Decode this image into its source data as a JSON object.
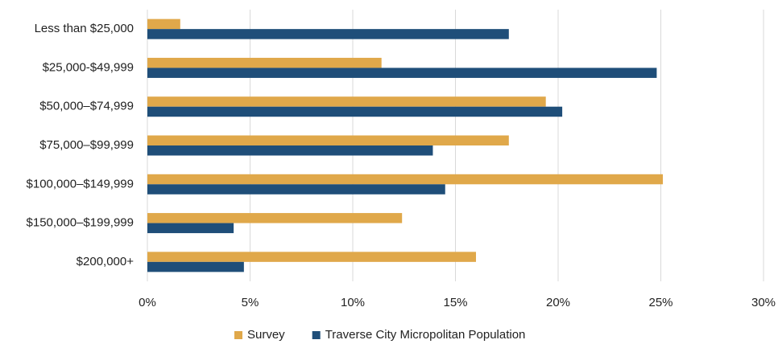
{
  "chart_data": {
    "type": "bar",
    "orientation": "horizontal",
    "categories": [
      "Less than $25,000",
      "$25,000-$49,999",
      "$50,000–$74,999",
      "$75,000–$99,999",
      "$100,000–$149,999",
      "$150,000–$199,999",
      "$200,000+"
    ],
    "series": [
      {
        "name": "Survey",
        "color": "#e0a84a",
        "values": [
          1.6,
          11.4,
          19.4,
          17.6,
          25.1,
          12.4,
          16.0
        ]
      },
      {
        "name": "Traverse City Micropolitan Population",
        "color": "#1f4e79",
        "values": [
          17.6,
          24.8,
          20.2,
          13.9,
          14.5,
          4.2,
          4.7
        ]
      }
    ],
    "xlim": [
      0,
      30
    ],
    "xticks": [
      {
        "value": 0,
        "label": "0%"
      },
      {
        "value": 5,
        "label": "5%"
      },
      {
        "value": 10,
        "label": "10%"
      },
      {
        "value": 15,
        "label": "15%"
      },
      {
        "value": 20,
        "label": "20%"
      },
      {
        "value": 25,
        "label": "25%"
      },
      {
        "value": 30,
        "label": "30%"
      }
    ],
    "grid": true,
    "legend": "bottom"
  }
}
